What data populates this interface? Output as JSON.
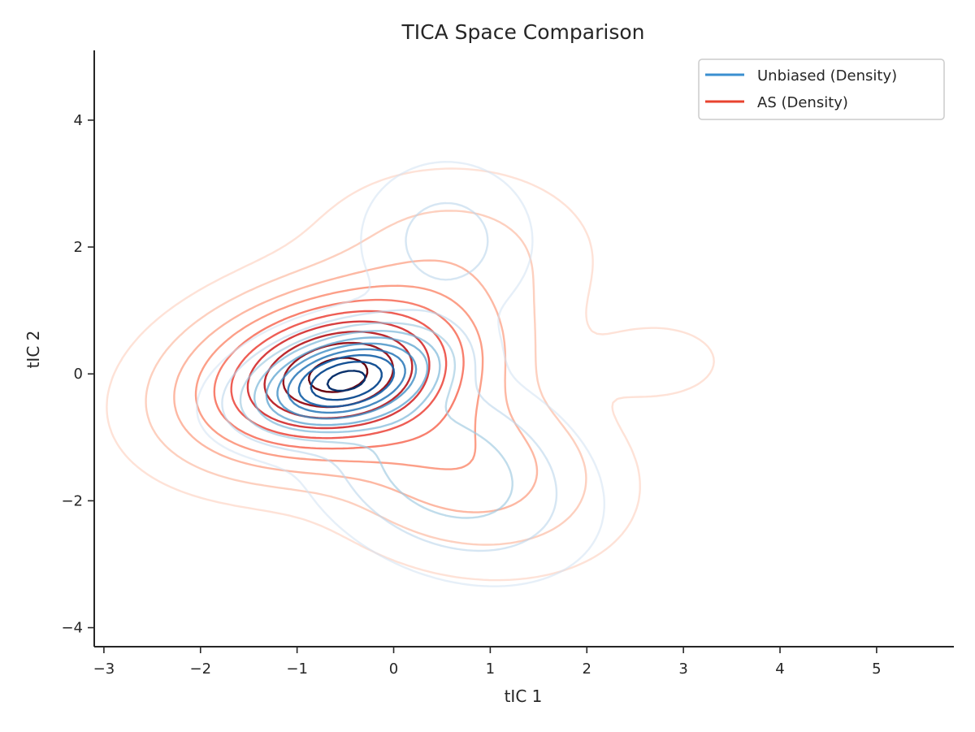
{
  "chart_data": {
    "type": "contour",
    "title": "TICA Space Comparison",
    "xlabel": "tIC 1",
    "ylabel": "tIC 2",
    "xlim": [
      -3.1,
      5.8
    ],
    "ylim": [
      -4.3,
      5.1
    ],
    "xticks": [
      -3,
      -2,
      -1,
      0,
      1,
      2,
      3,
      4,
      5
    ],
    "xtick_labels": [
      "−3",
      "−2",
      "−1",
      "0",
      "1",
      "2",
      "3",
      "4",
      "5"
    ],
    "yticks": [
      -4,
      -2,
      0,
      2,
      4
    ],
    "ytick_labels": [
      "−4",
      "−2",
      "0",
      "2",
      "4"
    ],
    "grid": false,
    "legend_position": "top-right",
    "series": [
      {
        "name": "Unbiased (Density)",
        "kind": "kde-contour",
        "color": "#3a8fd0",
        "colormap": "Blues",
        "levels": 10,
        "components": [
          {
            "mean": [
              -0.5,
              -0.1
            ],
            "sd": [
              0.55,
              0.45
            ],
            "rho": 0.35,
            "weight": 1.0
          },
          {
            "mean": [
              0.55,
              -1.5
            ],
            "sd": [
              0.75,
              0.85
            ],
            "rho": -0.3,
            "weight": 0.22
          },
          {
            "mean": [
              0.55,
              2.1
            ],
            "sd": [
              0.5,
              0.7
            ],
            "rho": 0.0,
            "weight": 0.1
          },
          {
            "mean": [
              2.75,
              0.25
            ],
            "sd": [
              0.45,
              0.32
            ],
            "rho": 0.0,
            "weight": 0.015
          }
        ]
      },
      {
        "name": "AS (Density)",
        "kind": "kde-contour",
        "color": "#e8432f",
        "colormap": "Reds",
        "levels": 10,
        "components": [
          {
            "mean": [
              -0.6,
              0.0
            ],
            "sd": [
              0.85,
              0.75
            ],
            "rho": 0.25,
            "weight": 1.0
          },
          {
            "mean": [
              0.7,
              -1.4
            ],
            "sd": [
              0.85,
              0.85
            ],
            "rho": -0.2,
            "weight": 0.22
          },
          {
            "mean": [
              0.6,
              1.9
            ],
            "sd": [
              0.8,
              0.75
            ],
            "rho": 0.0,
            "weight": 0.1
          },
          {
            "mean": [
              2.75,
              0.2
            ],
            "sd": [
              0.45,
              0.4
            ],
            "rho": 0.0,
            "weight": 0.045
          }
        ]
      }
    ]
  }
}
